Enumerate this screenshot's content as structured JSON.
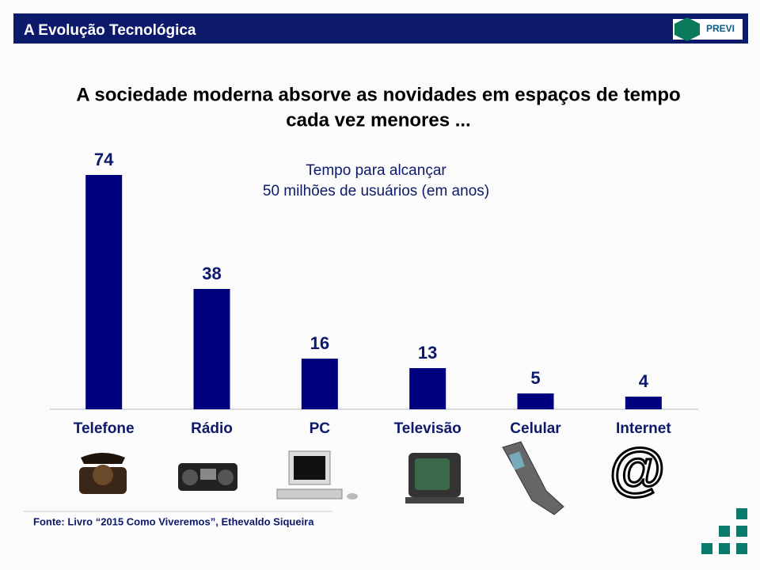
{
  "header": {
    "title": "A Evolução Tecnológica",
    "logo": "PREVI"
  },
  "headline": [
    "A sociedade moderna absorve as novidades em espaços de tempo",
    "cada vez menores ..."
  ],
  "chart_data": {
    "type": "bar",
    "annotation": [
      "Tempo para alcançar",
      "50 milhões de usuários (em anos)"
    ],
    "categories": [
      "Telefone",
      "Rádio",
      "PC",
      "Televisão",
      "Celular",
      "Internet"
    ],
    "values": [
      74,
      38,
      16,
      13,
      5,
      4
    ],
    "color": "#00007f"
  },
  "footer": "Fonte: Livro “2015 Como Viveremos”, Ethevaldo Siqueira"
}
